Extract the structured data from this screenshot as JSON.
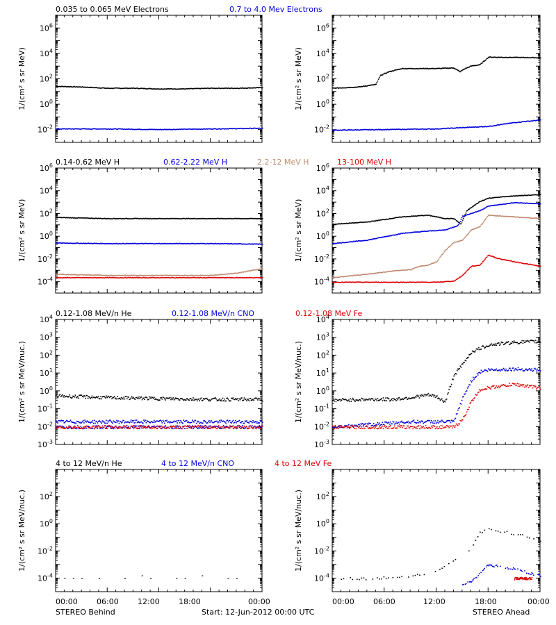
{
  "figure": {
    "footer": {
      "left": "STEREO Behind",
      "center": "Start: 12-Jun-2012 00:00 UTC",
      "right": "STEREO Ahead"
    },
    "x_tick_labels": [
      "00:00",
      "06:00",
      "12:00",
      "18:00",
      "00:00"
    ]
  },
  "colors": {
    "black": "#000000",
    "blue": "#0000dd",
    "tan": "#c08a70",
    "red": "#dd0000"
  },
  "chart_data": [
    {
      "type": "scatter",
      "row": 0,
      "ylabel": "1/(cm² s sr MeV)",
      "ylog_range": [
        -3,
        7
      ],
      "y_ticks": [
        {
          "e": 6,
          "label_base": "10",
          "label_exp": "6"
        },
        {
          "e": 4,
          "label_base": "10",
          "label_exp": "4"
        },
        {
          "e": 2,
          "label_base": "10",
          "label_exp": "2"
        },
        {
          "e": 0,
          "label_base": "10",
          "label_exp": "0"
        },
        {
          "e": -2,
          "label_base": "10",
          "label_exp": "-2"
        }
      ],
      "legend": [
        {
          "text": "0.035 to 0.065 MeV Electrons",
          "color": "#000000"
        },
        {
          "text": "0.7 to 4.0 Mev Electrons",
          "color": "#0000dd"
        }
      ],
      "behind": [
        {
          "color": "#000000",
          "x": [
            0,
            3,
            6,
            9,
            12,
            15,
            18,
            21,
            24
          ],
          "y": [
            1.45,
            1.4,
            1.3,
            1.3,
            1.25,
            1.25,
            1.3,
            1.3,
            1.35
          ]
        },
        {
          "color": "#0000dd",
          "x": [
            0,
            6,
            12,
            18,
            24
          ],
          "y": [
            -1.9,
            -1.9,
            -1.95,
            -1.9,
            -1.85
          ]
        }
      ],
      "ahead": [
        {
          "color": "#000000",
          "x": [
            0,
            3,
            5,
            5.5,
            6.5,
            8,
            12,
            14,
            14.7,
            15.3,
            16,
            17,
            18,
            24
          ],
          "y": [
            1.3,
            1.4,
            1.6,
            2.3,
            2.6,
            2.85,
            2.85,
            2.9,
            2.6,
            2.85,
            3.05,
            3.15,
            3.75,
            3.7
          ]
        },
        {
          "color": "#0000dd",
          "x": [
            0,
            6,
            12,
            18,
            21,
            24
          ],
          "y": [
            -2.0,
            -1.95,
            -1.9,
            -1.7,
            -1.4,
            -1.2
          ]
        }
      ]
    },
    {
      "type": "scatter",
      "row": 1,
      "ylabel": "1/(cm² s sr MeV)",
      "ylog_range": [
        -5,
        6
      ],
      "y_ticks": [
        {
          "e": 6,
          "label_base": "10",
          "label_exp": "6"
        },
        {
          "e": 4,
          "label_base": "10",
          "label_exp": "4"
        },
        {
          "e": 2,
          "label_base": "10",
          "label_exp": "2"
        },
        {
          "e": 0,
          "label_base": "10",
          "label_exp": "0"
        },
        {
          "e": -2,
          "label_base": "10",
          "label_exp": "-2"
        },
        {
          "e": -4,
          "label_base": "10",
          "label_exp": "-4"
        }
      ],
      "legend": [
        {
          "text": "0.14-0.62 MeV H",
          "color": "#000000"
        },
        {
          "text": "0.62-2.22 MeV H",
          "color": "#0000dd"
        },
        {
          "text": "2.2-12 MeV H",
          "color": "#c08a70"
        },
        {
          "text": "13-100 MeV H",
          "color": "#dd0000"
        }
      ],
      "behind": [
        {
          "color": "#000000",
          "x": [
            0,
            6,
            12,
            18,
            24
          ],
          "y": [
            1.7,
            1.6,
            1.6,
            1.6,
            1.6
          ]
        },
        {
          "color": "#0000dd",
          "x": [
            0,
            6,
            12,
            18,
            24
          ],
          "y": [
            -0.55,
            -0.6,
            -0.6,
            -0.6,
            -0.65
          ]
        },
        {
          "color": "#c08a70",
          "x": [
            0,
            6,
            12,
            18,
            21,
            24
          ],
          "y": [
            -3.3,
            -3.4,
            -3.4,
            -3.4,
            -3.2,
            -2.8
          ]
        },
        {
          "color": "#dd0000",
          "x": [
            0,
            6,
            12,
            18,
            24
          ],
          "y": [
            -3.6,
            -3.6,
            -3.6,
            -3.6,
            -3.6
          ]
        }
      ],
      "ahead": [
        {
          "color": "#000000",
          "x": [
            0,
            4,
            8,
            11,
            13,
            14,
            14.8,
            15.5,
            17,
            18,
            21,
            24
          ],
          "y": [
            1.1,
            1.3,
            1.75,
            1.9,
            1.6,
            1.6,
            1.1,
            2.3,
            3.1,
            3.4,
            3.6,
            3.7
          ]
        },
        {
          "color": "#0000dd",
          "x": [
            0,
            4,
            8,
            11,
            13,
            14.5,
            15,
            17,
            18,
            21,
            24
          ],
          "y": [
            -0.6,
            -0.3,
            0.3,
            0.5,
            0.6,
            1.0,
            1.8,
            2.3,
            2.7,
            3.0,
            2.9
          ]
        },
        {
          "color": "#c08a70",
          "x": [
            0,
            4,
            7,
            9,
            10,
            11,
            12,
            13,
            14,
            15,
            16,
            17,
            18,
            24
          ],
          "y": [
            -3.6,
            -3.3,
            -3.0,
            -2.9,
            -2.6,
            -2.5,
            -2.2,
            -1.2,
            -0.5,
            -0.3,
            0.6,
            0.9,
            1.9,
            1.6
          ]
        },
        {
          "color": "#dd0000",
          "x": [
            0,
            6,
            10,
            12,
            14,
            15,
            16,
            17,
            18,
            19,
            21,
            24
          ],
          "y": [
            -4.0,
            -4.0,
            -4.0,
            -4.0,
            -3.9,
            -3.4,
            -2.6,
            -2.5,
            -1.6,
            -1.9,
            -2.2,
            -2.6
          ]
        }
      ]
    },
    {
      "type": "scatter",
      "row": 2,
      "ylabel": "1/(cm² s sr MeV/nuc.)",
      "ylog_range": [
        -3,
        4
      ],
      "y_ticks": [
        {
          "e": 4,
          "label_base": "10",
          "label_exp": "4"
        },
        {
          "e": 3,
          "label_base": "10",
          "label_exp": "3"
        },
        {
          "e": 2,
          "label_base": "10",
          "label_exp": "2"
        },
        {
          "e": 1,
          "label_base": "10",
          "label_exp": "1"
        },
        {
          "e": 0,
          "label_base": "10",
          "label_exp": "0"
        },
        {
          "e": -1,
          "label_base": "10",
          "label_exp": "-1"
        },
        {
          "e": -2,
          "label_base": "10",
          "label_exp": "-2"
        },
        {
          "e": -3,
          "label_base": "10",
          "label_exp": "-3"
        }
      ],
      "legend": [
        {
          "text": "0.12-1.08 MeV/n He",
          "color": "#000000"
        },
        {
          "text": "0.12-1.08 MeV/n CNO",
          "color": "#0000dd"
        },
        {
          "text": "0.12-1.08 MeV Fe",
          "color": "#dd0000"
        }
      ],
      "behind": [
        {
          "color": "#000000",
          "x": [
            0,
            6,
            12,
            18,
            24
          ],
          "y": [
            -0.25,
            -0.35,
            -0.4,
            -0.45,
            -0.45
          ]
        },
        {
          "color": "#0000dd",
          "x": [
            0,
            6,
            12,
            18,
            24
          ],
          "y": [
            -1.7,
            -1.7,
            -1.7,
            -1.7,
            -1.7
          ]
        },
        {
          "color": "#0000dd",
          "x": [
            0,
            24
          ],
          "y": [
            -2.0,
            -2.0
          ]
        },
        {
          "color": "#dd0000",
          "x": [
            0,
            24
          ],
          "y": [
            -2.0,
            -2.0
          ]
        }
      ],
      "ahead": [
        {
          "color": "#000000",
          "x": [
            0,
            4,
            7,
            9,
            11,
            12,
            13,
            14,
            15,
            16,
            17,
            18,
            21,
            24
          ],
          "y": [
            -0.5,
            -0.45,
            -0.45,
            -0.35,
            -0.2,
            -0.3,
            -0.6,
            0.9,
            1.5,
            2.2,
            2.4,
            2.6,
            2.75,
            2.8
          ]
        },
        {
          "color": "#0000dd",
          "x": [
            0,
            9,
            12,
            14,
            15,
            16,
            17,
            18,
            21,
            24
          ],
          "y": [
            -2.0,
            -1.7,
            -1.7,
            -1.7,
            -0.4,
            0.6,
            1.1,
            1.2,
            1.25,
            1.2
          ]
        },
        {
          "color": "#dd0000",
          "x": [
            0,
            12,
            14,
            15,
            16,
            17,
            18,
            21,
            24
          ],
          "y": [
            -2.0,
            -2.0,
            -2.0,
            -1.6,
            -0.6,
            0.1,
            0.2,
            0.4,
            0.2
          ]
        }
      ]
    },
    {
      "type": "scatter",
      "row": 3,
      "ylabel": "1/(cm² s sr MeV/nuc.)",
      "ylog_range": [
        -5,
        4
      ],
      "y_ticks": [
        {
          "e": 2,
          "label_base": "10",
          "label_exp": "2"
        },
        {
          "e": 0,
          "label_base": "10",
          "label_exp": "0"
        },
        {
          "e": -2,
          "label_base": "10",
          "label_exp": "-2"
        },
        {
          "e": -4,
          "label_base": "10",
          "label_exp": "-4"
        }
      ],
      "legend": [
        {
          "text": "4 to 12 MeV/n He",
          "color": "#000000"
        },
        {
          "text": "4 to 12 MeV/n CNO",
          "color": "#0000dd"
        },
        {
          "text": "4 to 12 MeV Fe",
          "color": "#dd0000"
        }
      ],
      "behind": [
        {
          "color": "#000000",
          "x": [
            1,
            2,
            3,
            5,
            8,
            10,
            11,
            14,
            15,
            17,
            20,
            21
          ],
          "y": [
            -4.0,
            -4.0,
            -4.0,
            -4.0,
            -4.0,
            -3.8,
            -4.0,
            -4.0,
            -4.0,
            -3.8,
            -4.0,
            -4.0
          ]
        }
      ],
      "ahead": [
        {
          "color": "#000000",
          "x": [
            1,
            3,
            5,
            9,
            11,
            12,
            13,
            14,
            15,
            16,
            17,
            18,
            21,
            24
          ],
          "y": [
            -4.0,
            -4.0,
            -4.0,
            -3.8,
            -3.6,
            -3.4,
            -3.0,
            -2.6,
            -2.2,
            -1.9,
            -0.6,
            -0.4,
            -0.7,
            -1.2
          ]
        },
        {
          "color": "#0000dd",
          "x": [
            15,
            16,
            17,
            18,
            21,
            24
          ],
          "y": [
            -4.5,
            -4.2,
            -3.6,
            -3.0,
            -3.3,
            -3.8
          ]
        },
        {
          "color": "#dd0000",
          "x": [
            21,
            22,
            23
          ],
          "y": [
            -4.0,
            -4.0,
            -4.0
          ]
        }
      ]
    }
  ]
}
